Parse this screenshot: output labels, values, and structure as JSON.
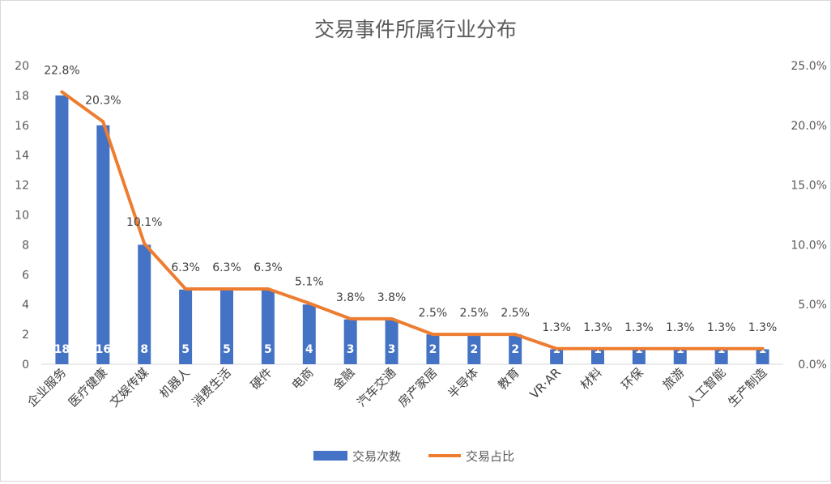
{
  "chart_data": {
    "type": "bar",
    "title": "交易事件所属行业分布",
    "categories": [
      "企业服务",
      "医疗健康",
      "文娱传媒",
      "机器人",
      "消费生活",
      "硬件",
      "电商",
      "金融",
      "汽车交通",
      "房产家居",
      "半导体",
      "教育",
      "VR·AR",
      "材料",
      "环保",
      "旅游",
      "人工智能",
      "生产制造"
    ],
    "series": [
      {
        "name": "交易次数",
        "type": "bar",
        "axis": "left",
        "color": "#4472C4",
        "values": [
          18,
          16,
          8,
          5,
          5,
          5,
          4,
          3,
          3,
          2,
          2,
          2,
          1,
          1,
          1,
          1,
          1,
          1
        ]
      },
      {
        "name": "交易占比",
        "type": "line",
        "axis": "right",
        "color": "#ED7D31",
        "values": [
          22.8,
          20.3,
          10.1,
          6.3,
          6.3,
          6.3,
          5.1,
          3.8,
          3.8,
          2.5,
          2.5,
          2.5,
          1.3,
          1.3,
          1.3,
          1.3,
          1.3,
          1.3
        ],
        "labels": [
          "22.8%",
          "20.3%",
          "10.1%",
          "6.3%",
          "6.3%",
          "6.3%",
          "5.1%",
          "3.8%",
          "3.8%",
          "2.5%",
          "2.5%",
          "2.5%",
          "1.3%",
          "1.3%",
          "1.3%",
          "1.3%",
          "1.3%",
          "1.3%"
        ]
      }
    ],
    "y_left": {
      "min": 0,
      "max": 20,
      "ticks": [
        "0",
        "2",
        "4",
        "6",
        "8",
        "10",
        "12",
        "14",
        "16",
        "18",
        "20"
      ]
    },
    "y_right": {
      "min": 0,
      "max": 25,
      "ticks": [
        "0.0%",
        "5.0%",
        "10.0%",
        "15.0%",
        "20.0%",
        "25.0%"
      ]
    },
    "grid": false,
    "legend": "bottom-center"
  }
}
